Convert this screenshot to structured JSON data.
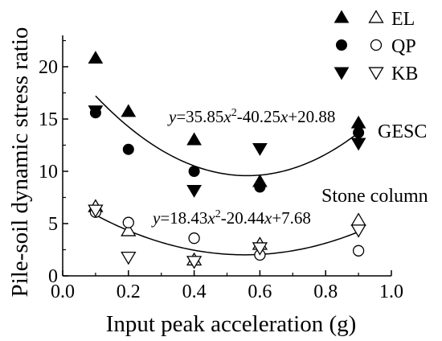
{
  "chart_data": {
    "type": "scatter",
    "xlabel": "Input peak acceleration (g)",
    "ylabel": "Pile-soil dynamic stress ratio",
    "xlim": [
      0.0,
      1.0
    ],
    "ylim": [
      0,
      23
    ],
    "xticks": [
      "0.0",
      "0.2",
      "0.4",
      "0.6",
      "0.8",
      "1.0"
    ],
    "yticks": [
      "0",
      "5",
      "10",
      "15",
      "20"
    ],
    "grid": false,
    "legend_position": "top-right",
    "legend": [
      {
        "name": "EL",
        "marker": "triangle-up"
      },
      {
        "name": "QP",
        "marker": "circle"
      },
      {
        "name": "KB",
        "marker": "triangle-down"
      }
    ],
    "groups": [
      {
        "name": "GESC",
        "filled": true,
        "fit_equation": "y=35.85x2-40.25x+20.88",
        "fit_coefficients": [
          35.85,
          -40.25,
          20.88
        ],
        "series": [
          {
            "name": "EL",
            "marker": "triangle-up",
            "x": [
              0.1,
              0.2,
              0.4,
              0.6,
              0.9
            ],
            "y": [
              20.8,
              15.7,
              13.0,
              9.0,
              14.6
            ]
          },
          {
            "name": "QP",
            "marker": "circle",
            "x": [
              0.1,
              0.2,
              0.4,
              0.6,
              0.9
            ],
            "y": [
              15.6,
              12.1,
              10.0,
              8.5,
              13.7
            ]
          },
          {
            "name": "KB",
            "marker": "triangle-down",
            "x": [
              0.1,
              0.4,
              0.6,
              0.9
            ],
            "y": [
              15.8,
              8.2,
              12.2,
              12.7
            ]
          }
        ]
      },
      {
        "name": "Stone column",
        "filled": false,
        "fit_equation": "y=18.43x2-20.44x+7.68",
        "fit_coefficients": [
          18.43,
          -20.44,
          7.68
        ],
        "series": [
          {
            "name": "EL",
            "marker": "triangle-up",
            "x": [
              0.1,
              0.2,
              0.4,
              0.6,
              0.9
            ],
            "y": [
              6.6,
              4.3,
              1.5,
              3.0,
              5.3
            ]
          },
          {
            "name": "QP",
            "marker": "circle",
            "x": [
              0.1,
              0.2,
              0.4,
              0.6,
              0.9
            ],
            "y": [
              6.1,
              5.1,
              3.6,
              2.0,
              2.4
            ]
          },
          {
            "name": "KB",
            "marker": "triangle-down",
            "x": [
              0.1,
              0.2,
              0.4,
              0.6,
              0.9
            ],
            "y": [
              6.3,
              1.8,
              1.4,
              2.7,
              4.4
            ]
          }
        ]
      }
    ]
  }
}
